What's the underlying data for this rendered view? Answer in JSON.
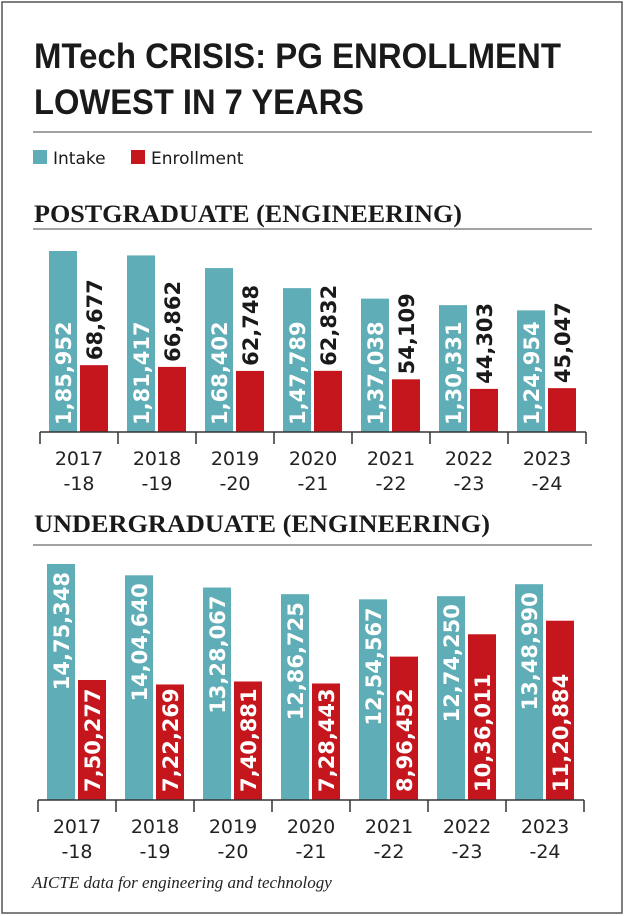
{
  "colors": {
    "intake": "#5fadb6",
    "enrollment": "#c4161c"
  },
  "title_lines": [
    "MTech CRISIS: PG ENROLLMENT",
    "LOWEST IN 7 YEARS"
  ],
  "legend": [
    "Intake",
    "Enrollment"
  ],
  "footer": "AICTE data for engineering and technology",
  "chart_data": [
    {
      "type": "bar",
      "title": "POSTGRADUATE (ENGINEERING)",
      "categories": [
        [
          "2017",
          "-18"
        ],
        [
          "2018",
          "-19"
        ],
        [
          "2019",
          "-20"
        ],
        [
          "2020",
          "-21"
        ],
        [
          "2021",
          "-22"
        ],
        [
          "2022",
          "-23"
        ],
        [
          "2023",
          "-24"
        ]
      ],
      "series": [
        {
          "name": "Intake",
          "values": [
            185952,
            181417,
            168402,
            147789,
            137038,
            130331,
            124954
          ],
          "labels": [
            "1,85,952",
            "1,81,417",
            "1,68,402",
            "1,47,789",
            "1,37,038",
            "1,30,331",
            "1,24,954"
          ]
        },
        {
          "name": "Enrollment",
          "values": [
            68677,
            66862,
            62748,
            62832,
            54109,
            44303,
            45047
          ],
          "labels": [
            "68,677",
            "66,862",
            "62,748",
            "62,832",
            "54,109",
            "44,303",
            "45,047"
          ]
        }
      ]
    },
    {
      "type": "bar",
      "title": "UNDERGRADUATE (ENGINEERING)",
      "categories": [
        [
          "2017",
          "-18"
        ],
        [
          "2018",
          "-19"
        ],
        [
          "2019",
          "-20"
        ],
        [
          "2020",
          "-21"
        ],
        [
          "2021",
          "-22"
        ],
        [
          "2022",
          "-23"
        ],
        [
          "2023",
          "-24"
        ]
      ],
      "series": [
        {
          "name": "Intake",
          "values": [
            1475348,
            1404640,
            1328067,
            1286725,
            1254567,
            1274250,
            1348990
          ],
          "labels": [
            "14,75,348",
            "14,04,640",
            "13,28,067",
            "12,86,725",
            "12,54,567",
            "12,74,250",
            "13,48,990"
          ]
        },
        {
          "name": "Enrollment",
          "values": [
            750277,
            722269,
            740881,
            728443,
            896452,
            1036011,
            1120884
          ],
          "labels": [
            "7,50,277",
            "7,22,269",
            "7,40,881",
            "7,28,443",
            "8,96,452",
            "10,36,011",
            "11,20,884"
          ]
        }
      ]
    }
  ]
}
